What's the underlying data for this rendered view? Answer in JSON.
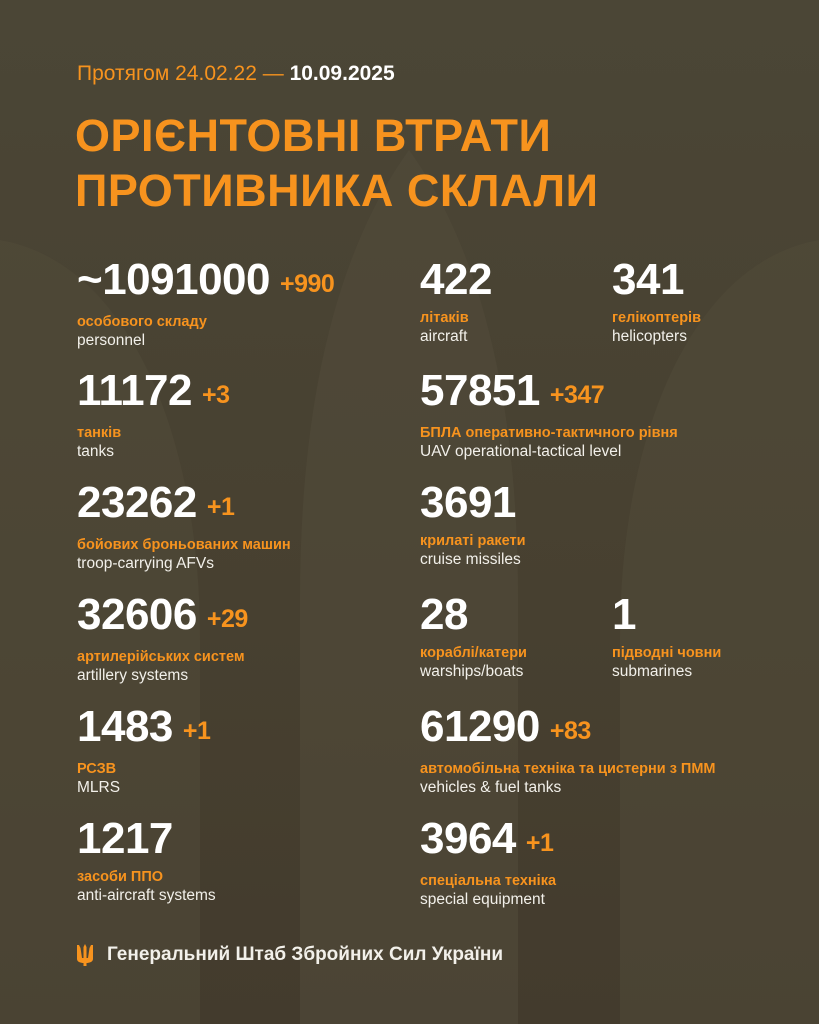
{
  "header": {
    "period_prefix": "Протягом 24.02.22 —",
    "period_date": "10.09.2025",
    "title_line1": "ОРІЄНТОВНІ ВТРАТИ",
    "title_line2": "ПРОТИВНИКА СКЛАЛИ"
  },
  "stats": [
    {
      "value": "~1091000",
      "increase": "+990",
      "label_ua": "особового складу",
      "label_en": "personnel"
    },
    {
      "value": "11172",
      "increase": "+3",
      "label_ua": "танків",
      "label_en": "tanks"
    },
    {
      "value": "23262",
      "increase": "+1",
      "label_ua": "бойових броньованих машин",
      "label_en": "troop-carrying AFVs"
    },
    {
      "value": "32606",
      "increase": "+29",
      "label_ua": "артилерійських систем",
      "label_en": "artillery systems"
    },
    {
      "value": "1483",
      "increase": "+1",
      "label_ua": "РСЗВ",
      "label_en": "MLRS"
    },
    {
      "value": "1217",
      "increase": "",
      "label_ua": "засоби ППО",
      "label_en": "anti-aircraft systems"
    },
    {
      "value": "422",
      "increase": "",
      "label_ua": "літаків",
      "label_en": "aircraft"
    },
    {
      "value": "341",
      "increase": "",
      "label_ua": "гелікоптерів",
      "label_en": "helicopters"
    },
    {
      "value": "57851",
      "increase": "+347",
      "label_ua": "БПЛА оперативно-тактичного рівня",
      "label_en": "UAV operational-tactical level"
    },
    {
      "value": "3691",
      "increase": "",
      "label_ua": "крилаті ракети",
      "label_en": "cruise missiles"
    },
    {
      "value": "28",
      "increase": "",
      "label_ua": "кораблі/катери",
      "label_en": "warships/boats"
    },
    {
      "value": "1",
      "increase": "",
      "label_ua": "підводні човни",
      "label_en": "submarines"
    },
    {
      "value": "61290",
      "increase": "+83",
      "label_ua": "автомобільна техніка та цистерни з ПММ",
      "label_en": "vehicles & fuel tanks"
    },
    {
      "value": "3964",
      "increase": "+1",
      "label_ua": "спеціальна техніка",
      "label_en": "special equipment"
    }
  ],
  "footer": {
    "org": "Генеральний Штаб Збройних Сил України",
    "logo_icon": "trident-icon"
  },
  "colors": {
    "accent": "#f7931e",
    "background": "#4a4535",
    "text": "#ffffff"
  }
}
